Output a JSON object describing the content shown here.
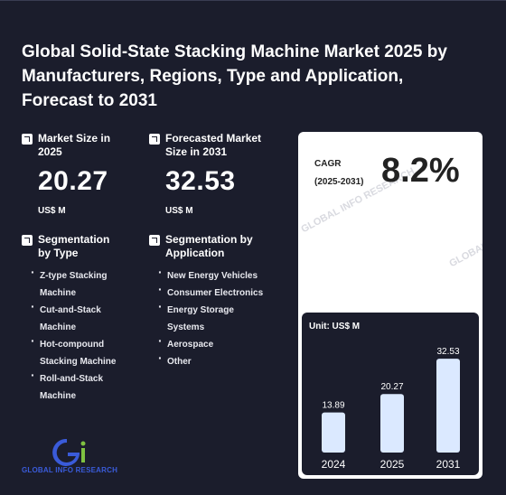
{
  "report": {
    "title": "Global Solid-State Stacking Machine Market 2025 by Manufacturers, Regions, Type and Application, Forecast to 2031"
  },
  "market_size": {
    "label": "Market Size in 2025",
    "value": "20.27",
    "unit": "US$ M"
  },
  "forecast": {
    "label": "Forecasted Market Size in 2031",
    "value": "32.53",
    "unit": "US$ M"
  },
  "segmentation_type": {
    "label": "Segmentation by Type",
    "items": [
      "Z-type Stacking Machine",
      "Cut-and-Stack Machine",
      "Hot-compound Stacking Machine",
      "Roll-and-Stack Machine"
    ]
  },
  "segmentation_application": {
    "label": "Segmentation by Application",
    "items": [
      "New Energy Vehicles",
      "Consumer Electronics",
      "Energy Storage Systems",
      "Aerospace",
      "Other"
    ]
  },
  "cagr": {
    "label": "CAGR",
    "period": "(2025-2031)",
    "value": "8.2%"
  },
  "watermark": "GLOBAL INFO RESEARCH",
  "logo": {
    "text": "GLOBAL INFO RESEARCH",
    "colors": {
      "blue": "#3a5bd9",
      "green": "#7fc241"
    }
  },
  "chart_data": {
    "type": "bar",
    "unit_label": "Unit: US$ M",
    "categories": [
      "2024",
      "2025",
      "2031"
    ],
    "values": [
      13.89,
      20.27,
      32.53
    ],
    "ylim": [
      0,
      36
    ],
    "bar_color": "#dbe9ff"
  }
}
